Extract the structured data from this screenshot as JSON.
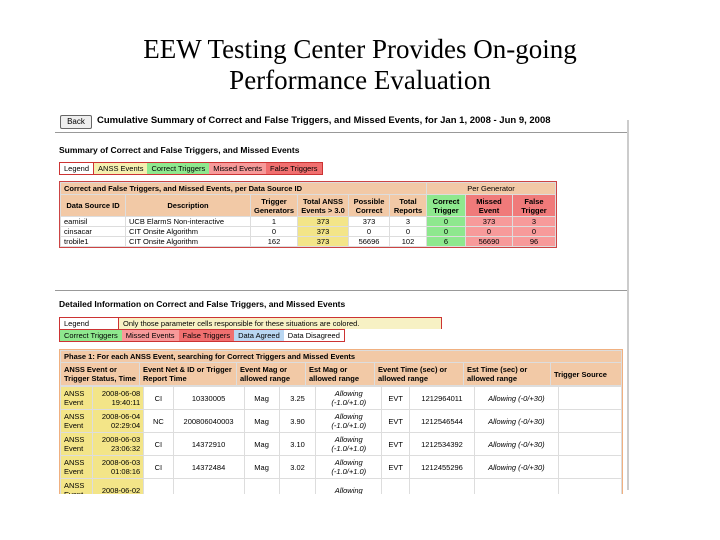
{
  "slide": {
    "title_line1": "EEW Testing Center Provides On-going",
    "title_line2": "Performance Evaluation"
  },
  "page": {
    "back_label": "Back",
    "title": "Cumulative Summary of Correct and False Triggers, and Missed Events, for Jan 1, 2008 - Jun 9, 2008"
  },
  "summary": {
    "heading": "Summary of Correct and False Triggers, and Missed Events",
    "legend": [
      "Legend",
      "ANSS Events",
      "Correct Triggers",
      "Missed Events",
      "False Triggers"
    ],
    "table_title": "Correct and False Triggers, and Missed Events, per Data Source ID",
    "per_generator": "Per Generator",
    "columns": [
      "Data Source ID",
      "Description",
      "Trigger Generators",
      "Total ANSS Events > 3.0",
      "Possible Correct",
      "Total Reports",
      "Correct Trigger",
      "Missed Event",
      "False Trigger"
    ],
    "rows": [
      [
        "eamisil",
        "UCB ElarmS Non-interactive",
        "1",
        "373",
        "373",
        "3",
        "0",
        "373",
        "3"
      ],
      [
        "cinsacar",
        "CIT Onsite Algorithm",
        "0",
        "373",
        "0",
        "0",
        "0",
        "0",
        "0"
      ],
      [
        "trobile1",
        "CIT Onsite Algorithm",
        "162",
        "373",
        "56696",
        "102",
        "6",
        "56690",
        "96"
      ]
    ]
  },
  "detailed": {
    "heading": "Detailed Information on Correct and False Triggers, and Missed Events",
    "legend": [
      "Legend",
      "Only those parameter cells responsible for these situations are colored."
    ],
    "legend2": [
      "Correct Triggers",
      "Missed Events",
      "False Triggers",
      "Data Agreed",
      "Data Disagreed"
    ],
    "phase_title": "Phase 1: For each ANSS Event, searching for Correct Triggers and Missed Events",
    "columns": [
      "ANSS Event or Trigger Status, Time",
      "Event Net & ID or Trigger Report Time",
      "Event Mag or allowed range",
      "Est Mag or allowed range",
      "Event Time (sec) or allowed range",
      "Est Time (sec) or allowed range",
      "Trigger Source"
    ],
    "rows": [
      [
        "ANSS Event",
        "2008-06-08 19:40:11",
        "CI",
        "10330005",
        "Mag",
        "3.25",
        "Allowing (-1.0/+1.0)",
        "EVT",
        "1212964011",
        "Allowing (-0/+30)"
      ],
      [
        "ANSS Event",
        "2008-06-04 02:29:04",
        "NC",
        "200806040003",
        "Mag",
        "3.90",
        "Allowing (-1.0/+1.0)",
        "EVT",
        "1212546544",
        "Allowing (-0/+30)"
      ],
      [
        "ANSS Event",
        "2008-06-03 23:06:32",
        "CI",
        "14372910",
        "Mag",
        "3.10",
        "Allowing (-1.0/+1.0)",
        "EVT",
        "1212534392",
        "Allowing (-0/+30)"
      ],
      [
        "ANSS Event",
        "2008-06-03 01:08:16",
        "CI",
        "14372484",
        "Mag",
        "3.02",
        "Allowing (-1.0/+1.0)",
        "EVT",
        "1212455296",
        "Allowing (-0/+30)"
      ],
      [
        "ANSS Event",
        "2008-06-02",
        "",
        "",
        "",
        "",
        "Allowing",
        "",
        "",
        ""
      ]
    ]
  }
}
